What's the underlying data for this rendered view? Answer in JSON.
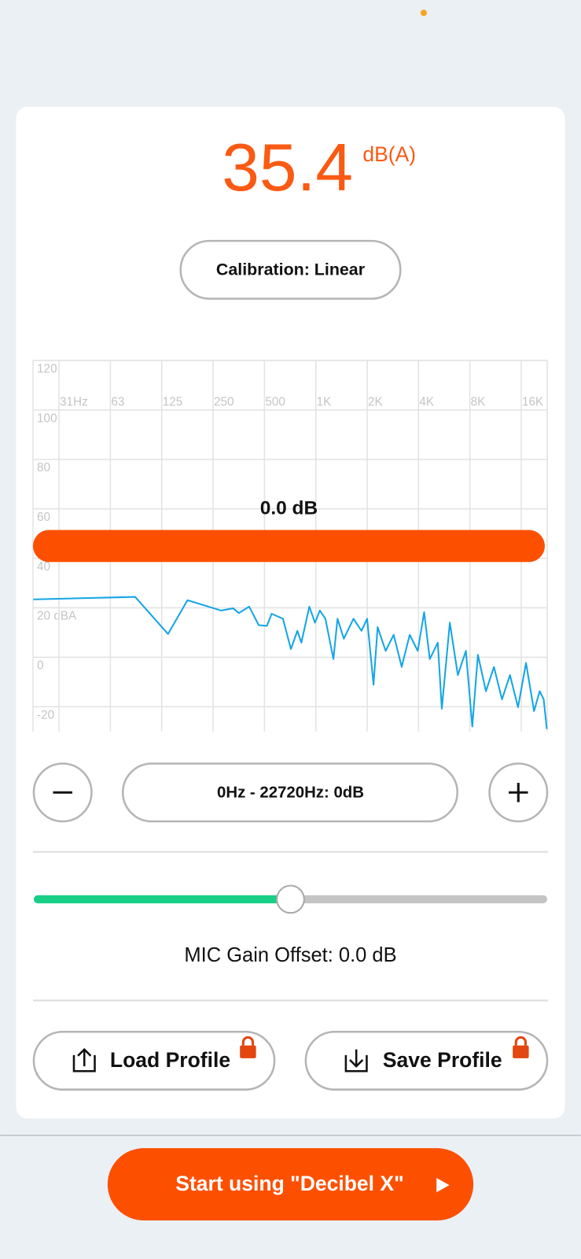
{
  "reading": {
    "value": "35.4",
    "unit": "dB(A)"
  },
  "calibration_button": "Calibration: Linear",
  "spectrum": {
    "type": "line",
    "band_label": "0.0 dB",
    "color": "#14a5e6",
    "xscale": "log",
    "xlim": [
      22,
      22720
    ],
    "ylim": [
      -30,
      120
    ],
    "grid": true,
    "xticks": [
      {
        "value": 31.25,
        "label": "31Hz"
      },
      {
        "value": 62.5,
        "label": "63"
      },
      125,
      250,
      500,
      {
        "value": 1000,
        "label": "1K"
      },
      {
        "value": 2000,
        "label": "2K"
      },
      {
        "value": 4000,
        "label": "4K"
      },
      {
        "value": 8000,
        "label": "8K"
      },
      {
        "value": 16000,
        "label": "16K"
      }
    ],
    "yticks": [
      120,
      100,
      80,
      60,
      40,
      {
        "value": 20,
        "label": "20 dBA"
      },
      0,
      -20
    ],
    "x": [
      22.1,
      87.4,
      136,
      177,
      242,
      279,
      328,
      354,
      407,
      463,
      517,
      551,
      642,
      715,
      780,
      823,
      917,
      989,
      1056,
      1139,
      1269,
      1340,
      1461,
      1663,
      1854,
      2000,
      2181,
      2303,
      2566,
      2859,
      3187,
      3551,
      3957,
      4316,
      4656,
      5188,
      5479,
      6104,
      6801,
      7578,
      8265,
      8915,
      9936,
      11070,
      12337,
      13746,
      15321,
      17071,
      19027,
      20524,
      21669,
      22600
    ],
    "values": [
      23.4,
      24.4,
      9.4,
      23.1,
      20.2,
      18.9,
      19.8,
      17.9,
      20.5,
      13.0,
      12.7,
      17.6,
      15.6,
      3.3,
      10.7,
      5.9,
      20.5,
      14.0,
      18.9,
      15.6,
      -0.7,
      15.6,
      7.5,
      15.6,
      10.7,
      15.6,
      -11.1,
      12.2,
      2.6,
      9.1,
      -3.9,
      9.1,
      2.6,
      18.2,
      -0.7,
      5.9,
      -20.8,
      14.0,
      -7.2,
      2.6,
      -28.0,
      1.0,
      -13.7,
      -3.9,
      -17.0,
      -7.2,
      -20.2,
      -2.3,
      -21.8,
      -13.7,
      -17.0,
      -29.0
    ]
  },
  "band_control": {
    "label": "0Hz - 22720Hz: 0dB"
  },
  "gain_label": "MIC Gain Offset: 0.0 dB",
  "buttons": [
    "Load Profile",
    "Save Profile"
  ],
  "cta": "Start using \"Decibel X\""
}
